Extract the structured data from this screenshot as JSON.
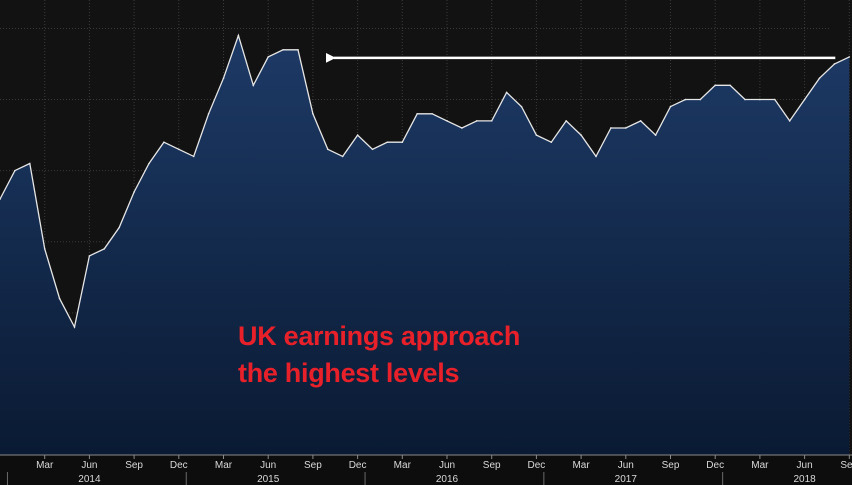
{
  "chart_data": {
    "type": "area",
    "title": "",
    "xlabel": "",
    "ylabel": "",
    "x": [
      "2013-12",
      "2014-01",
      "2014-02",
      "2014-03",
      "2014-04",
      "2014-05",
      "2014-06",
      "2014-07",
      "2014-08",
      "2014-09",
      "2014-10",
      "2014-11",
      "2014-12",
      "2015-01",
      "2015-02",
      "2015-03",
      "2015-04",
      "2015-05",
      "2015-06",
      "2015-07",
      "2015-08",
      "2015-09",
      "2015-10",
      "2015-11",
      "2015-12",
      "2016-01",
      "2016-02",
      "2016-03",
      "2016-04",
      "2016-05",
      "2016-06",
      "2016-07",
      "2016-08",
      "2016-09",
      "2016-10",
      "2016-11",
      "2016-12",
      "2017-01",
      "2017-02",
      "2017-03",
      "2017-04",
      "2017-05",
      "2017-06",
      "2017-07",
      "2017-08",
      "2017-09",
      "2017-10",
      "2017-11",
      "2017-12",
      "2018-01",
      "2018-02",
      "2018-03",
      "2018-04",
      "2018-05",
      "2018-06",
      "2018-07",
      "2018-08",
      "2018-09"
    ],
    "values": [
      1.6,
      2.0,
      2.1,
      0.9,
      0.2,
      -0.2,
      0.8,
      0.9,
      1.2,
      1.7,
      2.1,
      2.4,
      2.3,
      2.2,
      2.8,
      3.3,
      3.9,
      3.2,
      3.6,
      3.7,
      3.7,
      2.8,
      2.3,
      2.2,
      2.5,
      2.3,
      2.4,
      2.4,
      2.8,
      2.8,
      2.7,
      2.6,
      2.7,
      2.7,
      3.1,
      2.9,
      2.5,
      2.4,
      2.7,
      2.5,
      2.2,
      2.6,
      2.6,
      2.7,
      2.5,
      2.9,
      3.0,
      3.0,
      3.2,
      3.2,
      3.0,
      3.0,
      3.0,
      2.7,
      3.0,
      3.3,
      3.5,
      3.6
    ],
    "ylim": [
      -2,
      4.4
    ],
    "grid": true,
    "x_tick_labels": [
      "Mar",
      "Jun",
      "Sep",
      "Dec",
      "Mar",
      "Jun",
      "Sep",
      "Dec",
      "Mar",
      "Jun",
      "Sep",
      "Dec",
      "Mar",
      "Jun",
      "Sep",
      "Dec",
      "Mar",
      "Jun",
      "Sep"
    ],
    "x_tick_dates": [
      "2014-03",
      "2014-06",
      "2014-09",
      "2014-12",
      "2015-03",
      "2015-06",
      "2015-09",
      "2015-12",
      "2016-03",
      "2016-06",
      "2016-09",
      "2016-12",
      "2017-03",
      "2017-06",
      "2017-09",
      "2017-12",
      "2018-03",
      "2018-06",
      "2018-09"
    ],
    "year_labels": [
      "2014",
      "2015",
      "2016",
      "2017",
      "2018"
    ],
    "year_dates": [
      "2014-06",
      "2015-06",
      "2016-06",
      "2017-06",
      "2018-06"
    ],
    "colors": {
      "background": "#121212",
      "fill_top": "#1d3a66",
      "fill_bottom": "#0a1a33",
      "line": "#e6e6e6",
      "grid": "#3a3a3a",
      "arrow": "#ffffff",
      "annotation": "#e8202a"
    }
  },
  "annotation": {
    "line1": "UK earnings approach",
    "line2": "the highest levels"
  }
}
